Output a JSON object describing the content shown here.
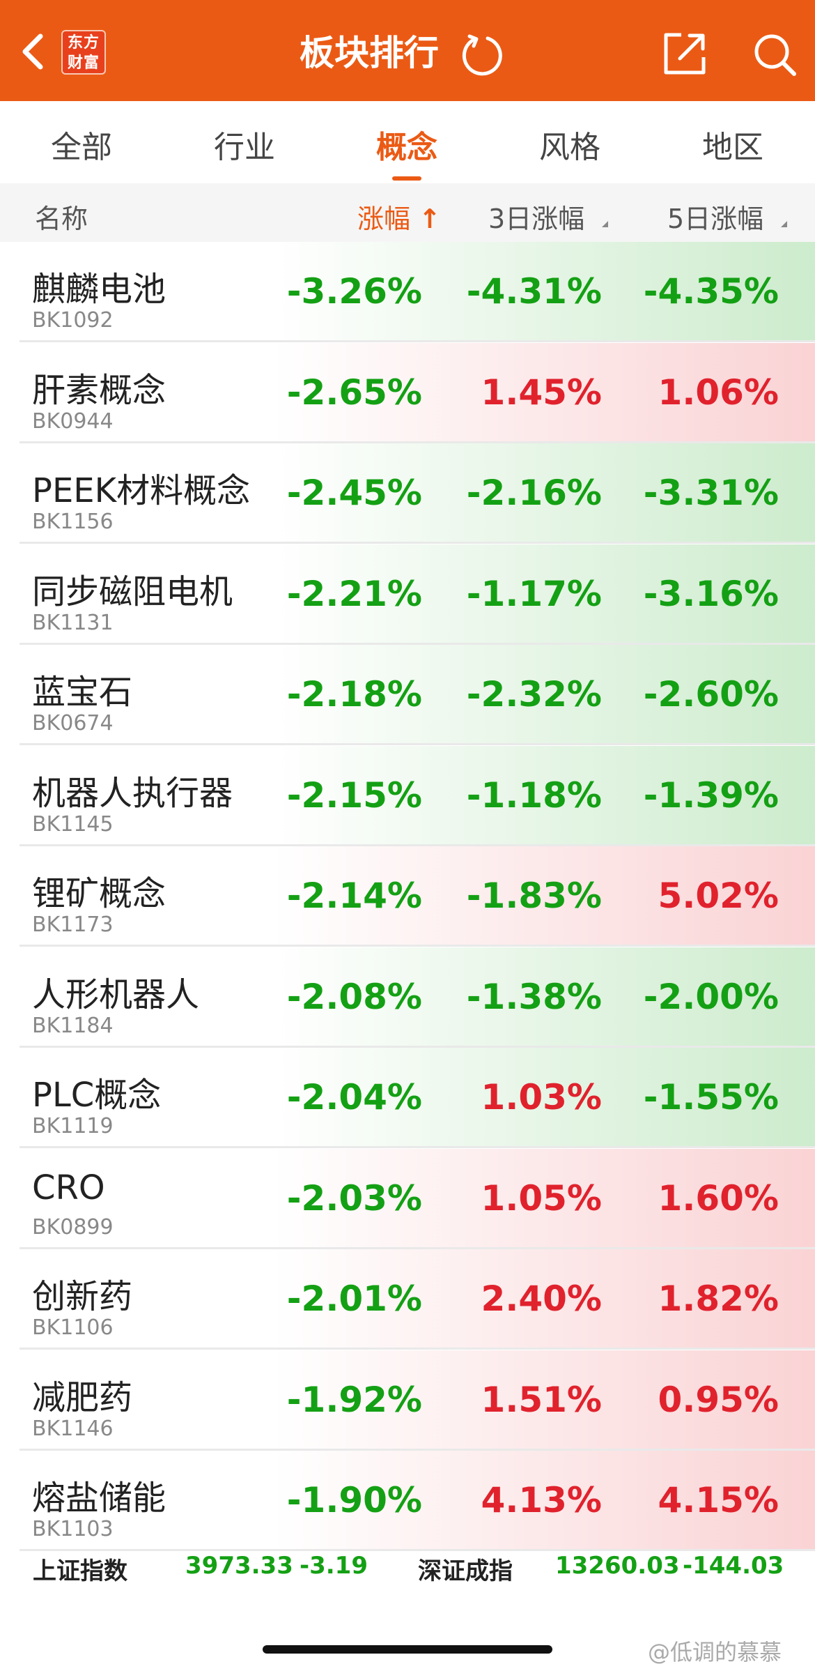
{
  "header": {
    "logo_line1": "东方",
    "logo_line2": "财富",
    "title": "板块排行"
  },
  "tabs": [
    {
      "label": "全部",
      "active": false
    },
    {
      "label": "行业",
      "active": false
    },
    {
      "label": "概念",
      "active": true
    },
    {
      "label": "风格",
      "active": false
    },
    {
      "label": "地区",
      "active": false
    }
  ],
  "columns": {
    "name": "名称",
    "change": "涨幅",
    "change_sort_arrow": "↑",
    "change_3d": "3日涨幅",
    "change_5d": "5日涨幅"
  },
  "colors": {
    "brand": "#eb5a14",
    "up": "#e0222d",
    "down": "#14a014"
  },
  "rows": [
    {
      "name": "麒麟电池",
      "code": "BK1092",
      "change": "-3.26%",
      "change_3d": "-4.31%",
      "change_5d": "-4.35%"
    },
    {
      "name": "肝素概念",
      "code": "BK0944",
      "change": "-2.65%",
      "change_3d": "1.45%",
      "change_5d": "1.06%"
    },
    {
      "name": "PEEK材料概念",
      "code": "BK1156",
      "change": "-2.45%",
      "change_3d": "-2.16%",
      "change_5d": "-3.31%"
    },
    {
      "name": "同步磁阻电机",
      "code": "BK1131",
      "change": "-2.21%",
      "change_3d": "-1.17%",
      "change_5d": "-3.16%"
    },
    {
      "name": "蓝宝石",
      "code": "BK0674",
      "change": "-2.18%",
      "change_3d": "-2.32%",
      "change_5d": "-2.60%"
    },
    {
      "name": "机器人执行器",
      "code": "BK1145",
      "change": "-2.15%",
      "change_3d": "-1.18%",
      "change_5d": "-1.39%"
    },
    {
      "name": "锂矿概念",
      "code": "BK1173",
      "change": "-2.14%",
      "change_3d": "-1.83%",
      "change_5d": "5.02%"
    },
    {
      "name": "人形机器人",
      "code": "BK1184",
      "change": "-2.08%",
      "change_3d": "-1.38%",
      "change_5d": "-2.00%"
    },
    {
      "name": "PLC概念",
      "code": "BK1119",
      "change": "-2.04%",
      "change_3d": "1.03%",
      "change_5d": "-1.55%"
    },
    {
      "name": "CRO",
      "code": "BK0899",
      "change": "-2.03%",
      "change_3d": "1.05%",
      "change_5d": "1.60%"
    },
    {
      "name": "创新药",
      "code": "BK1106",
      "change": "-2.01%",
      "change_3d": "2.40%",
      "change_5d": "1.82%"
    },
    {
      "name": "减肥药",
      "code": "BK1146",
      "change": "-1.92%",
      "change_3d": "1.51%",
      "change_5d": "0.95%"
    },
    {
      "name": "熔盐储能",
      "code": "BK1103",
      "change": "-1.90%",
      "change_3d": "4.13%",
      "change_5d": "4.15%"
    }
  ],
  "index_bar": {
    "sh_name": "上证指数",
    "sh_value": "3973.33",
    "sh_change": "-3.19",
    "sz_name": "深证成指",
    "sz_value": "13260.03",
    "sz_change": "-144.03"
  },
  "watermark": "@低调的慕慕"
}
